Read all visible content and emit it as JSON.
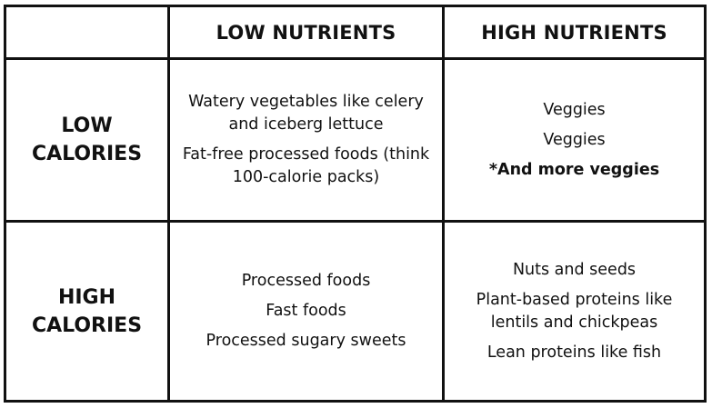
{
  "columns": {
    "low_nutrients": "LOW NUTRIENTS",
    "high_nutrients": "HIGH NUTRIENTS"
  },
  "rows": {
    "low_calories": [
      "LOW",
      "CALORIES"
    ],
    "high_calories": [
      "HIGH",
      "CALORIES"
    ]
  },
  "cells": {
    "low_cal_low_nut": [
      "Watery vegetables like celery",
      "and iceberg lettuce",
      "Fat-free processed foods (think",
      "100-calorie packs)"
    ],
    "low_cal_high_nut": [
      "Veggies",
      "Veggies",
      "*And more veggies"
    ],
    "high_cal_low_nut": [
      "Processed foods",
      "Fast foods",
      "Processed sugary sweets"
    ],
    "high_cal_high_nut": [
      "Nuts and seeds",
      "Plant-based proteins like",
      "lentils and chickpeas",
      "Lean proteins like fish"
    ]
  }
}
